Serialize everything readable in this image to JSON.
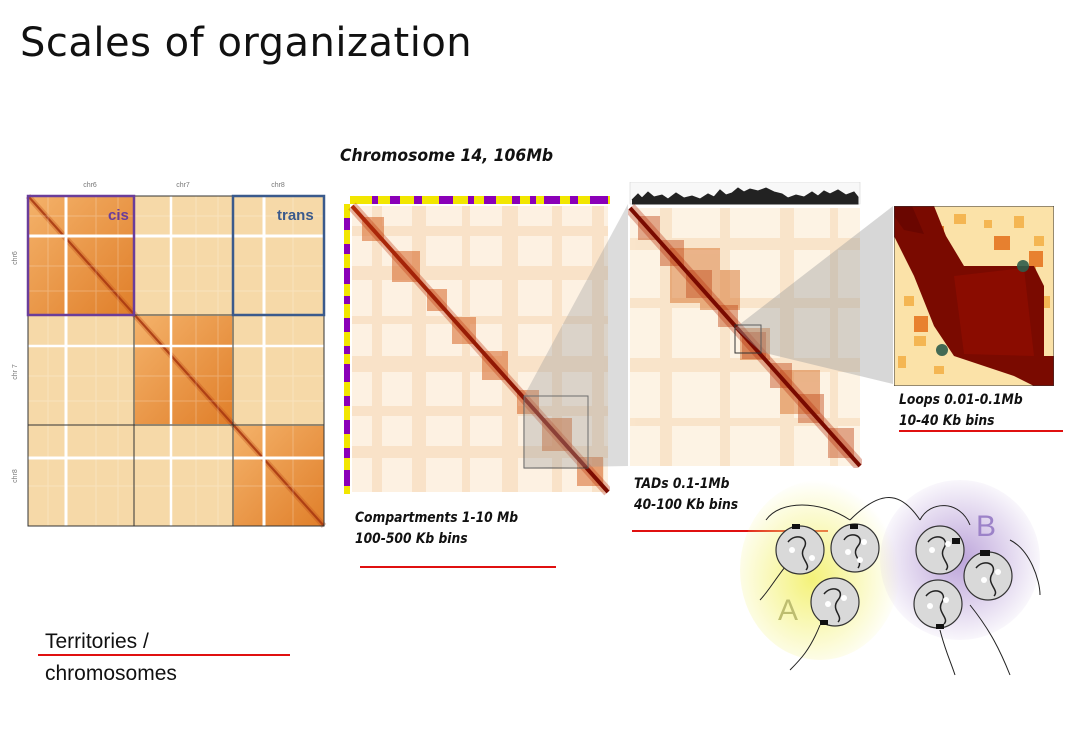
{
  "slide": {
    "title": "Scales of organization"
  },
  "panel_chromosomes": {
    "col_labels": [
      "chr6",
      "chr7",
      "chr8"
    ],
    "row_labels": [
      "chr6",
      "chr 7",
      "chr8"
    ],
    "cis_label": "cis",
    "trans_label": "trans",
    "cis_color": "#6a3d9a",
    "trans_color": "#3a5a8c",
    "caption_line1": "Territories /",
    "caption_line2": "chromosomes"
  },
  "panel_compartments": {
    "title": "Chromosome 14, 106Mb",
    "caption_line1": "Compartments 1-10 Mb",
    "caption_line2": "100-500 Kb bins",
    "track_colors": [
      "#f2e600",
      "#8a00b8"
    ]
  },
  "panel_tads": {
    "caption_line1": "TADs 0.1-1Mb",
    "caption_line2": "40-100 Kb bins"
  },
  "panel_loops": {
    "caption_line1": "Loops 0.01-0.1Mb",
    "caption_line2": "10-40 Kb bins"
  },
  "nucleus_diagram": {
    "label_a": "A",
    "label_b": "B",
    "color_a": "#f4f27a",
    "color_b": "#b59ad6"
  },
  "colors": {
    "underline": "#e01010",
    "heatmap_high": "#7a0a00",
    "heatmap_mid": "#e0802a",
    "heatmap_low": "#fdf4e6"
  }
}
